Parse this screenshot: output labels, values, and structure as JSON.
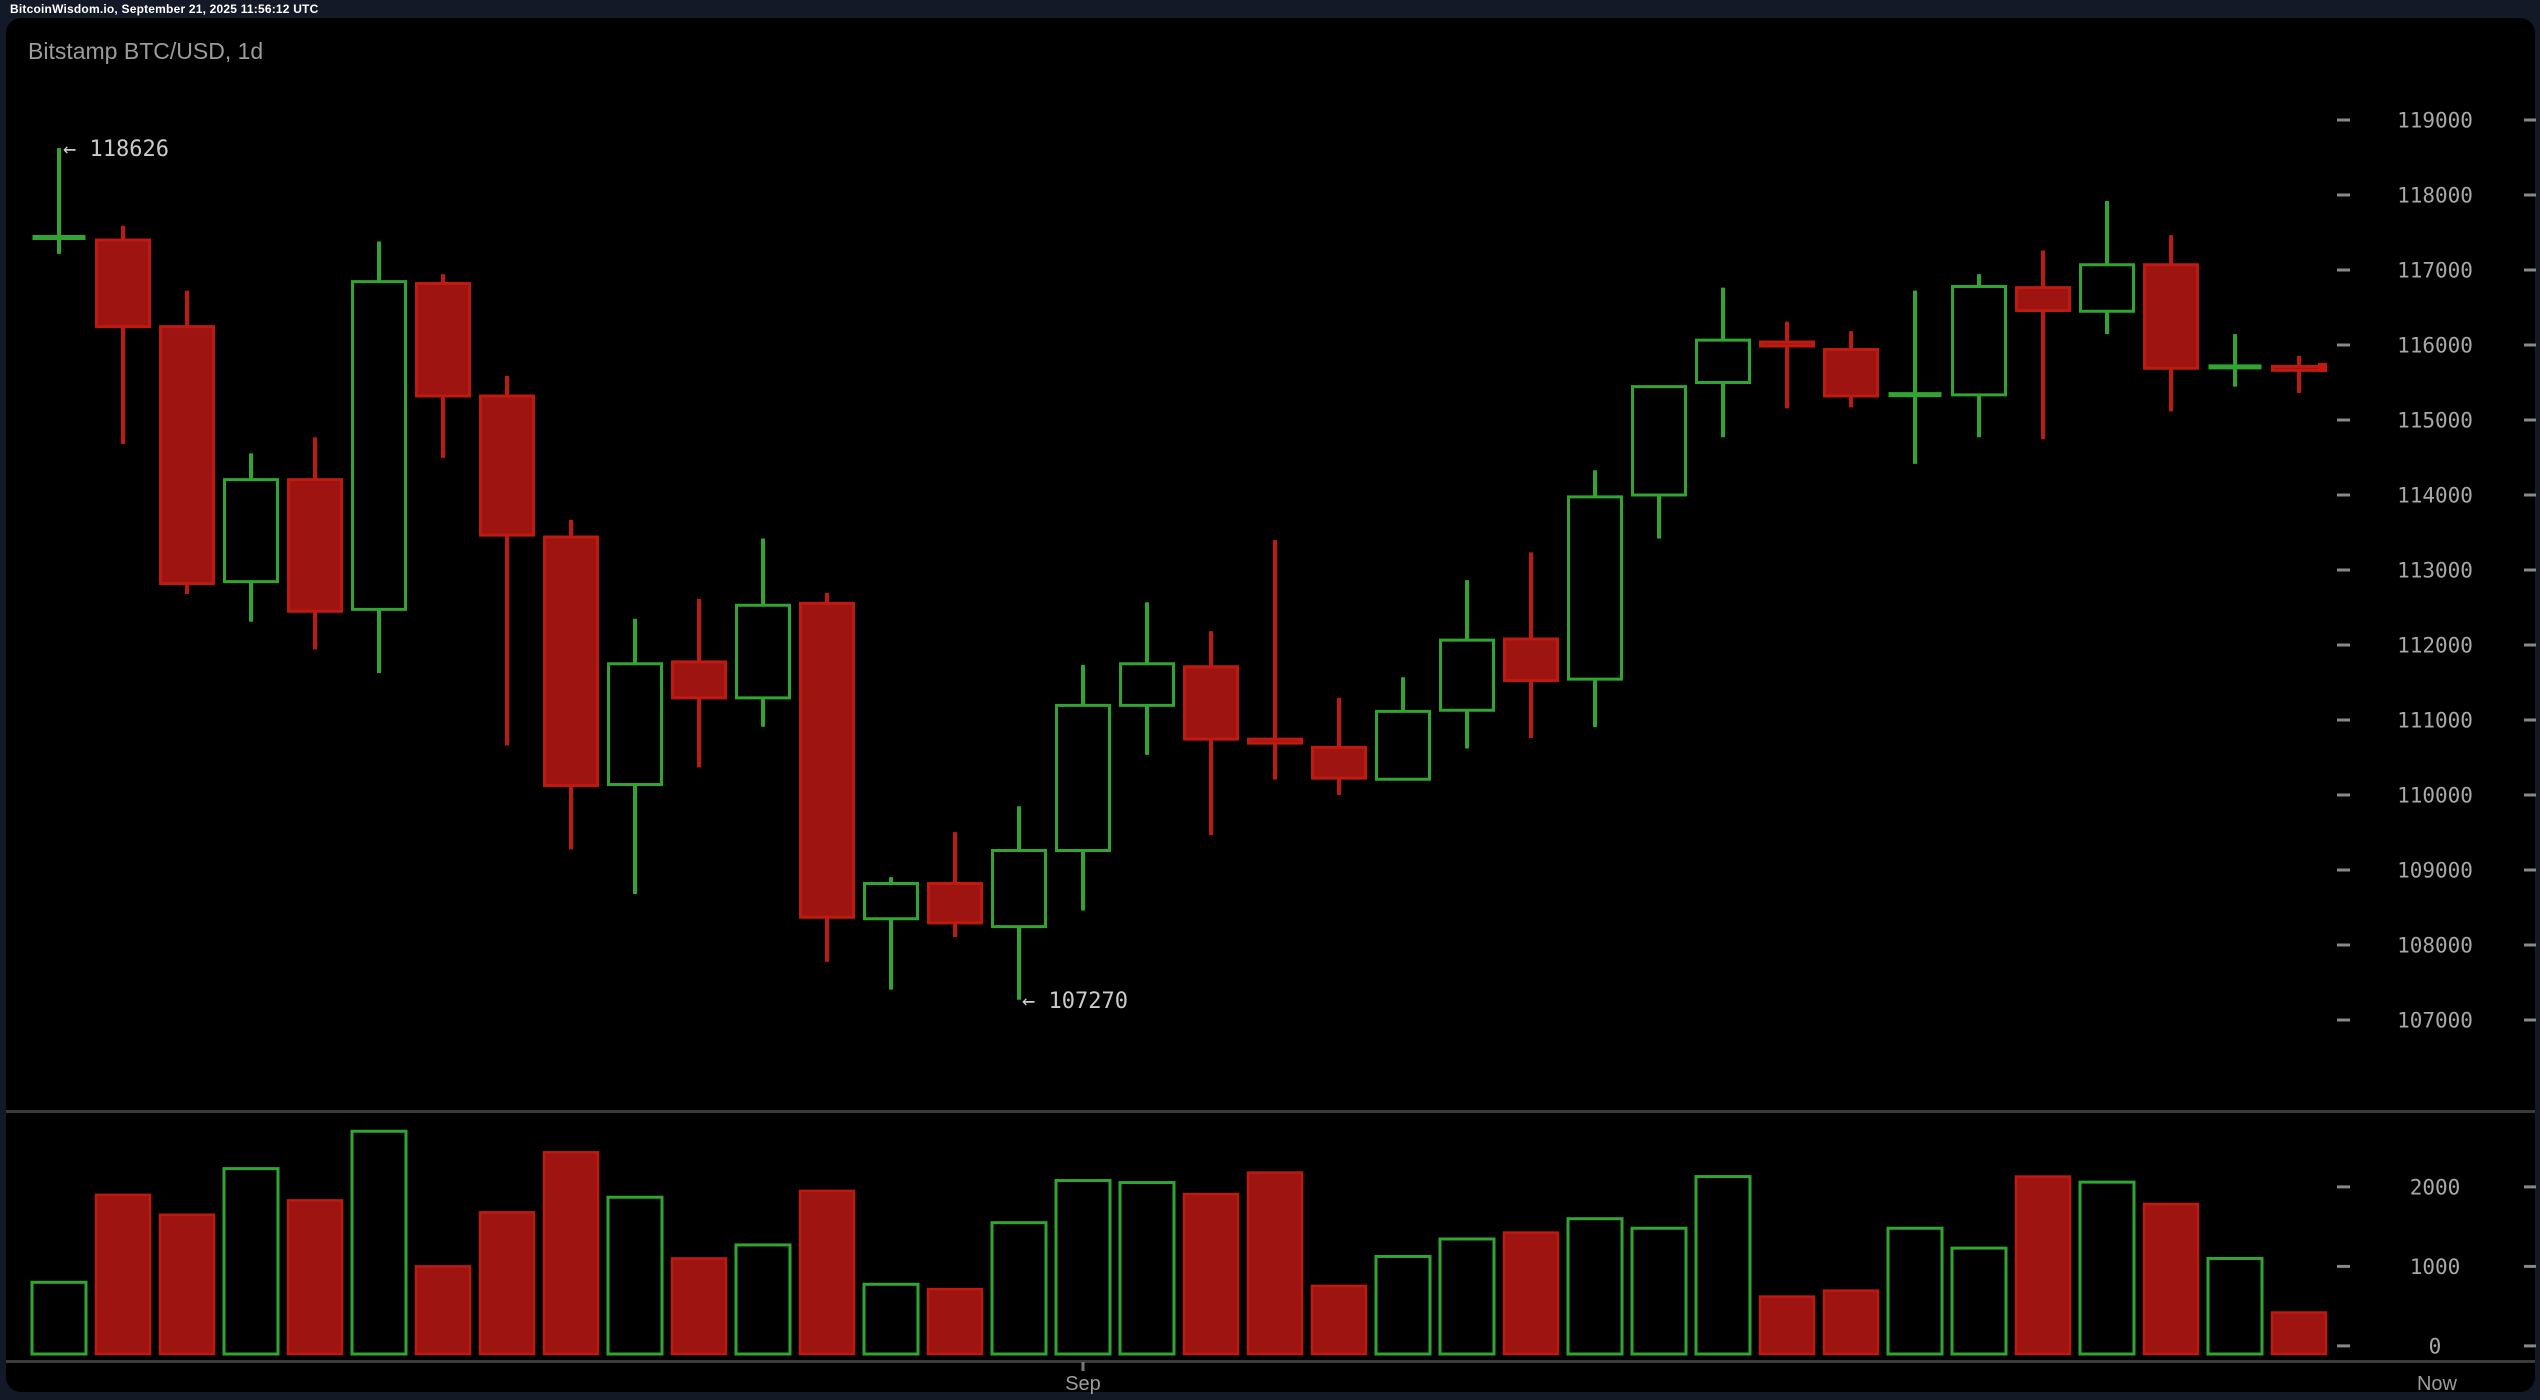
{
  "topbar": {
    "info": "BitcoinWisdom.io, September 21, 2025 11:56:12 UTC"
  },
  "chart": {
    "title": "Bitstamp BTC/USD, 1d"
  },
  "colors": {
    "up": "#32a432",
    "down_fill": "#9e1410",
    "down_stroke": "#bd1a12",
    "axis_text": "#a8a8a8",
    "tick_dash": "#888888",
    "x_label": "#9b9b9b",
    "annotation": "#cbcbcb",
    "divider": "#3b3b3b",
    "price_marker": "#c8170e"
  },
  "chart_data": {
    "type": "candlestick_with_volume",
    "title": "Bitstamp BTC/USD, 1d",
    "legend_position": "none",
    "grid": false,
    "price_axis": {
      "side": "right",
      "min": 107000,
      "max": 119000,
      "step": 1000,
      "ticks": [
        119000,
        118000,
        117000,
        116000,
        115000,
        114000,
        113000,
        112000,
        111000,
        110000,
        109000,
        108000,
        107000
      ]
    },
    "volume_axis": {
      "side": "right",
      "ticks": [
        2000,
        1000,
        0
      ]
    },
    "x_axis": {
      "month_label": {
        "text": "Sep",
        "candle_index": 16
      },
      "right_label": {
        "text": "Now"
      }
    },
    "annotations": [
      {
        "text": "← 118626",
        "value": 118626,
        "candle_index": 0,
        "anchor": "high"
      },
      {
        "text": "← 107270",
        "value": 107270,
        "candle_index": 15,
        "anchor": "low"
      }
    ],
    "current_price": 115700,
    "candles": [
      {
        "open": 117420,
        "high": 118626,
        "low": 117215,
        "close": 117440,
        "volume": 800
      },
      {
        "open": 117400,
        "high": 117590,
        "low": 114680,
        "close": 116245,
        "volume": 1900
      },
      {
        "open": 116245,
        "high": 116725,
        "low": 112680,
        "close": 112820,
        "volume": 1650
      },
      {
        "open": 112845,
        "high": 114555,
        "low": 112310,
        "close": 114205,
        "volume": 2230
      },
      {
        "open": 114205,
        "high": 114770,
        "low": 111940,
        "close": 112450,
        "volume": 1830
      },
      {
        "open": 112475,
        "high": 117380,
        "low": 111625,
        "close": 116845,
        "volume": 2700
      },
      {
        "open": 116820,
        "high": 116945,
        "low": 114495,
        "close": 115320,
        "volume": 1000
      },
      {
        "open": 115320,
        "high": 115590,
        "low": 110660,
        "close": 113465,
        "volume": 1680
      },
      {
        "open": 113440,
        "high": 113670,
        "low": 109275,
        "close": 110125,
        "volume": 2435
      },
      {
        "open": 110140,
        "high": 112350,
        "low": 108680,
        "close": 111750,
        "volume": 1870
      },
      {
        "open": 111775,
        "high": 112615,
        "low": 110370,
        "close": 111295,
        "volume": 1100
      },
      {
        "open": 111295,
        "high": 113420,
        "low": 110910,
        "close": 112530,
        "volume": 1270
      },
      {
        "open": 112555,
        "high": 112695,
        "low": 107775,
        "close": 108370,
        "volume": 1950
      },
      {
        "open": 108350,
        "high": 108905,
        "low": 107405,
        "close": 108820,
        "volume": 775
      },
      {
        "open": 108820,
        "high": 109505,
        "low": 108105,
        "close": 108295,
        "volume": 715
      },
      {
        "open": 108245,
        "high": 109850,
        "low": 107270,
        "close": 109260,
        "volume": 1550
      },
      {
        "open": 109260,
        "high": 111735,
        "low": 108460,
        "close": 111195,
        "volume": 2080
      },
      {
        "open": 111195,
        "high": 112570,
        "low": 110535,
        "close": 111750,
        "volume": 2055
      },
      {
        "open": 111710,
        "high": 112185,
        "low": 109465,
        "close": 110745,
        "volume": 1910
      },
      {
        "open": 110745,
        "high": 113400,
        "low": 110205,
        "close": 110720,
        "volume": 2180
      },
      {
        "open": 110635,
        "high": 111295,
        "low": 110000,
        "close": 110225,
        "volume": 755
      },
      {
        "open": 110210,
        "high": 111570,
        "low": 110210,
        "close": 111115,
        "volume": 1125
      },
      {
        "open": 111130,
        "high": 112865,
        "low": 110620,
        "close": 112065,
        "volume": 1345
      },
      {
        "open": 112080,
        "high": 113235,
        "low": 110760,
        "close": 111525,
        "volume": 1425
      },
      {
        "open": 111545,
        "high": 114330,
        "low": 110905,
        "close": 113975,
        "volume": 1600
      },
      {
        "open": 114000,
        "high": 115445,
        "low": 113420,
        "close": 115445,
        "volume": 1480
      },
      {
        "open": 115500,
        "high": 116765,
        "low": 114770,
        "close": 116065,
        "volume": 2130
      },
      {
        "open": 116040,
        "high": 116310,
        "low": 115155,
        "close": 116005,
        "volume": 620
      },
      {
        "open": 115940,
        "high": 116185,
        "low": 115170,
        "close": 115320,
        "volume": 695
      },
      {
        "open": 115330,
        "high": 116725,
        "low": 114415,
        "close": 115345,
        "volume": 1480
      },
      {
        "open": 115335,
        "high": 116945,
        "low": 114770,
        "close": 116780,
        "volume": 1230
      },
      {
        "open": 116765,
        "high": 117260,
        "low": 114745,
        "close": 116460,
        "volume": 2130
      },
      {
        "open": 116450,
        "high": 117920,
        "low": 116145,
        "close": 117070,
        "volume": 2060
      },
      {
        "open": 117070,
        "high": 117465,
        "low": 115115,
        "close": 115690,
        "volume": 1785
      },
      {
        "open": 115700,
        "high": 116145,
        "low": 115445,
        "close": 115715,
        "volume": 1100
      },
      {
        "open": 115715,
        "high": 115855,
        "low": 115360,
        "close": 115700,
        "volume": 420
      }
    ]
  }
}
